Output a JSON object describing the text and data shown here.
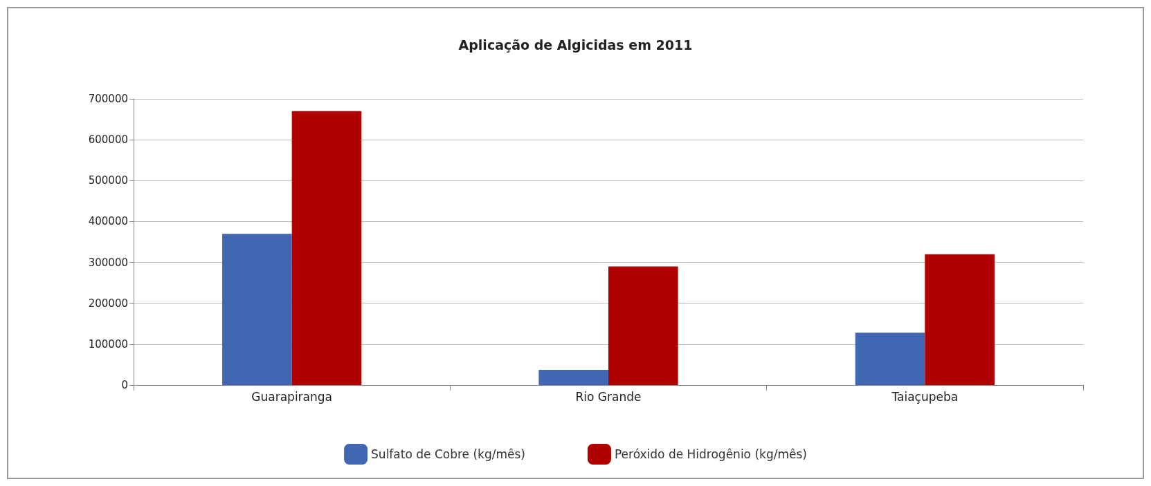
{
  "chart_data": {
    "type": "bar",
    "title": "Aplicação de Algicidas em 2011",
    "categories": [
      "Guarapiranga",
      "Rio Grande",
      "Taiaçupeba"
    ],
    "series": [
      {
        "name": "Sulfato de Cobre (kg/mês)",
        "color": "#4267b2",
        "values": [
          370000,
          37000,
          128000
        ]
      },
      {
        "name": "Peróxido de Hidrogênio (kg/mês)",
        "color": "#b00000",
        "values": [
          670000,
          290000,
          320000
        ]
      }
    ],
    "ylim": [
      0,
      700000
    ],
    "yticks": [
      0,
      100000,
      200000,
      300000,
      400000,
      500000,
      600000,
      700000
    ],
    "grid": "y",
    "legend": "bottom"
  }
}
